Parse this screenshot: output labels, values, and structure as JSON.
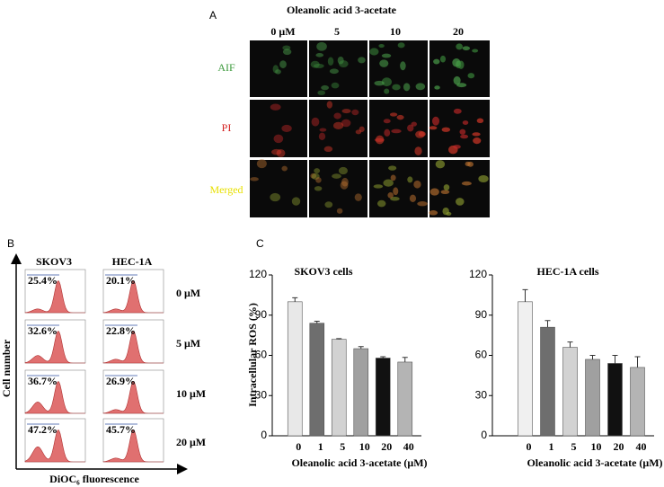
{
  "panel_a": {
    "label": "A",
    "title": "Oleanolic acid 3-acetate",
    "columns": [
      "0 μM",
      "5",
      "10",
      "20"
    ],
    "rows": [
      "AIF",
      "PI",
      "Merged"
    ]
  },
  "panel_b": {
    "label": "B",
    "columns": [
      "SKOV3",
      "HEC-1A"
    ],
    "rows": [
      "0 μM",
      "5 μM",
      "10 μM",
      "20 μM"
    ],
    "percentages": [
      [
        "25.4%",
        "20.1%"
      ],
      [
        "32.6%",
        "22.8%"
      ],
      [
        "36.7%",
        "26.9%"
      ],
      [
        "47.2%",
        "45.7%"
      ]
    ],
    "y_label": "Cell number",
    "x_label": "DiOC₆ fluorescence"
  },
  "panel_c": {
    "label": "C"
  },
  "chart_data": [
    {
      "type": "bar",
      "title": "SKOV3 cells",
      "y_label": "Intracellular ROS (%)",
      "x_label": "Oleanolic acid  3-acetate (μM)",
      "categories": [
        "0",
        "1",
        "5",
        "10",
        "20",
        "40"
      ],
      "values": [
        100,
        84,
        72,
        65,
        58,
        55
      ],
      "errors": [
        3,
        1.5,
        0.5,
        1.5,
        1,
        3.5
      ],
      "colors": [
        "#e8e8e8",
        "#6e6e6e",
        "#d2d2d2",
        "#a0a0a0",
        "#111111",
        "#b4b4b4"
      ],
      "ylim": [
        0,
        120
      ],
      "yticks": [
        0,
        30,
        60,
        90,
        120
      ]
    },
    {
      "type": "bar",
      "title": "HEC-1A cells",
      "x_label": "Oleanolic acid  3-acetate (μM)",
      "categories": [
        "0",
        "1",
        "5",
        "10",
        "20",
        "40"
      ],
      "values": [
        100,
        81,
        66,
        57,
        54,
        51
      ],
      "errors": [
        9,
        5,
        4,
        3,
        6,
        8
      ],
      "colors": [
        "#f0f0f0",
        "#6e6e6e",
        "#d2d2d2",
        "#a0a0a0",
        "#111111",
        "#b4b4b4"
      ],
      "ylim": [
        0,
        120
      ],
      "yticks": [
        0,
        30,
        60,
        90,
        120
      ]
    }
  ]
}
